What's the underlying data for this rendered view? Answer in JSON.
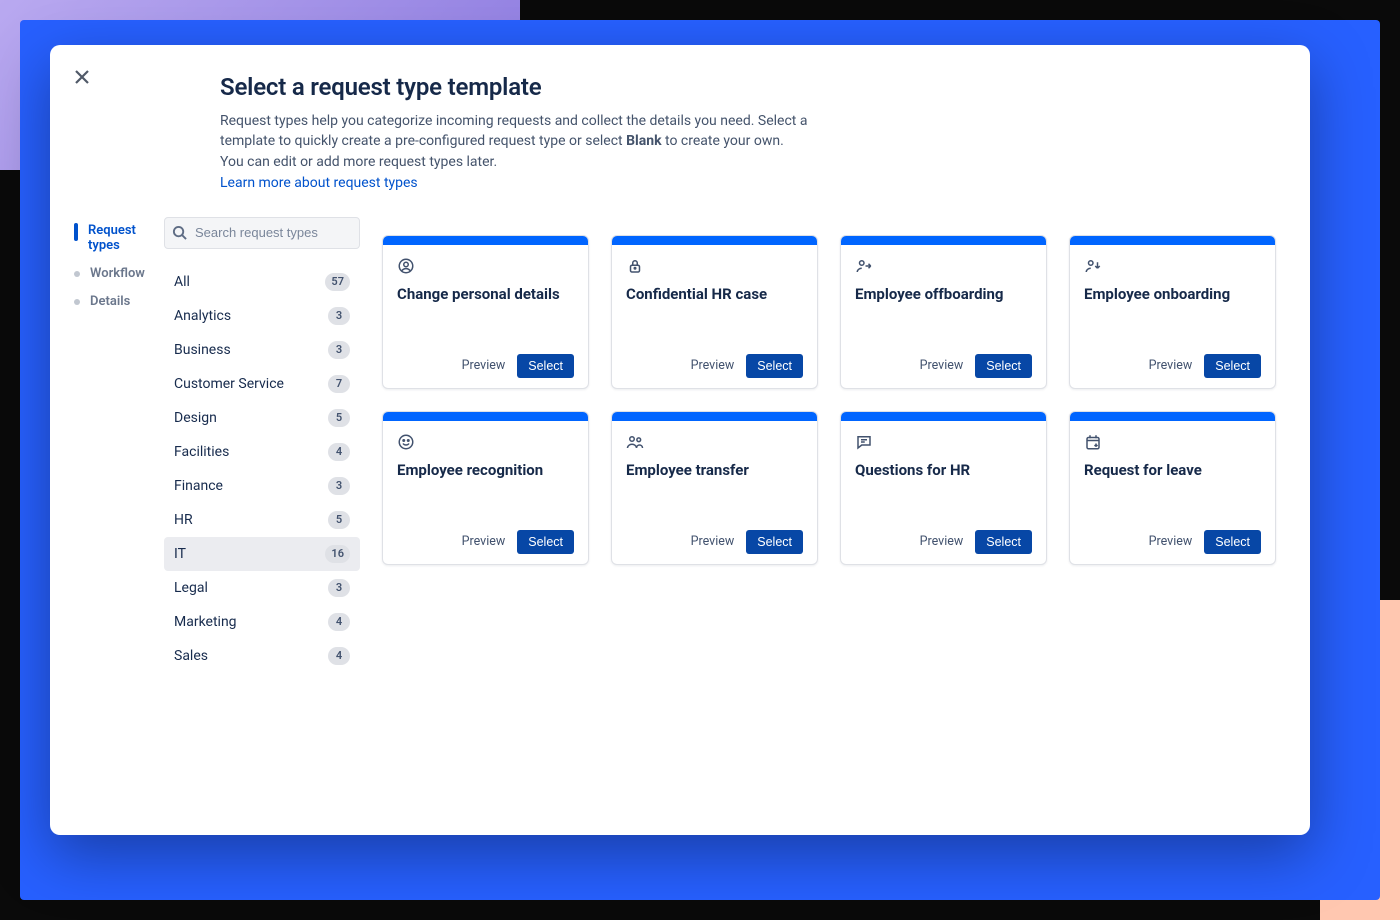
{
  "colors": {
    "background_black": "#0a0a0a",
    "background_blue": "#2760ff",
    "background_purple_from": "#b9a9f0",
    "background_purple_to": "#8b79e0",
    "background_peach": "#ffc7b0",
    "modal_bg": "#ffffff",
    "title_text": "#162949",
    "body_text": "#44536b",
    "link": "#0052cc",
    "card_top_bar": "#0065ff",
    "select_button": "#0747a6",
    "badge_bg": "#dfe1e6",
    "active_row_bg": "#ebecf0"
  },
  "header": {
    "title": "Select a request type template",
    "description_pre": "Request types help you categorize incoming requests and collect the details you need. Select a template to quickly create a pre-configured request type or select ",
    "description_bold": "Blank",
    "description_post": " to create your own. You can edit or add more request types later.",
    "link_label": "Learn more about request types"
  },
  "steps": {
    "active_index": 0,
    "items": [
      {
        "label": "Request types"
      },
      {
        "label": "Workflow"
      },
      {
        "label": "Details"
      }
    ]
  },
  "search": {
    "placeholder": "Search request types"
  },
  "categories": {
    "active_index": 8,
    "items": [
      {
        "label": "All",
        "count": "57"
      },
      {
        "label": "Analytics",
        "count": "3"
      },
      {
        "label": "Business",
        "count": "3"
      },
      {
        "label": "Customer Service",
        "count": "7"
      },
      {
        "label": "Design",
        "count": "5"
      },
      {
        "label": "Facilities",
        "count": "4"
      },
      {
        "label": "Finance",
        "count": "3"
      },
      {
        "label": "HR",
        "count": "5"
      },
      {
        "label": "IT",
        "count": "16"
      },
      {
        "label": "Legal",
        "count": "3"
      },
      {
        "label": "Marketing",
        "count": "4"
      },
      {
        "label": "Sales",
        "count": "4"
      }
    ]
  },
  "card_labels": {
    "preview": "Preview",
    "select": "Select"
  },
  "templates": [
    {
      "title": "Change personal details",
      "icon": "person-circle"
    },
    {
      "title": "Confidential HR case",
      "icon": "lock"
    },
    {
      "title": "Employee offboarding",
      "icon": "person-arrow-right"
    },
    {
      "title": "Employee onboarding",
      "icon": "person-arrow-down"
    },
    {
      "title": "Employee recognition",
      "icon": "smile"
    },
    {
      "title": "Employee transfer",
      "icon": "people"
    },
    {
      "title": "Questions for HR",
      "icon": "chat"
    },
    {
      "title": "Request for leave",
      "icon": "calendar"
    }
  ]
}
